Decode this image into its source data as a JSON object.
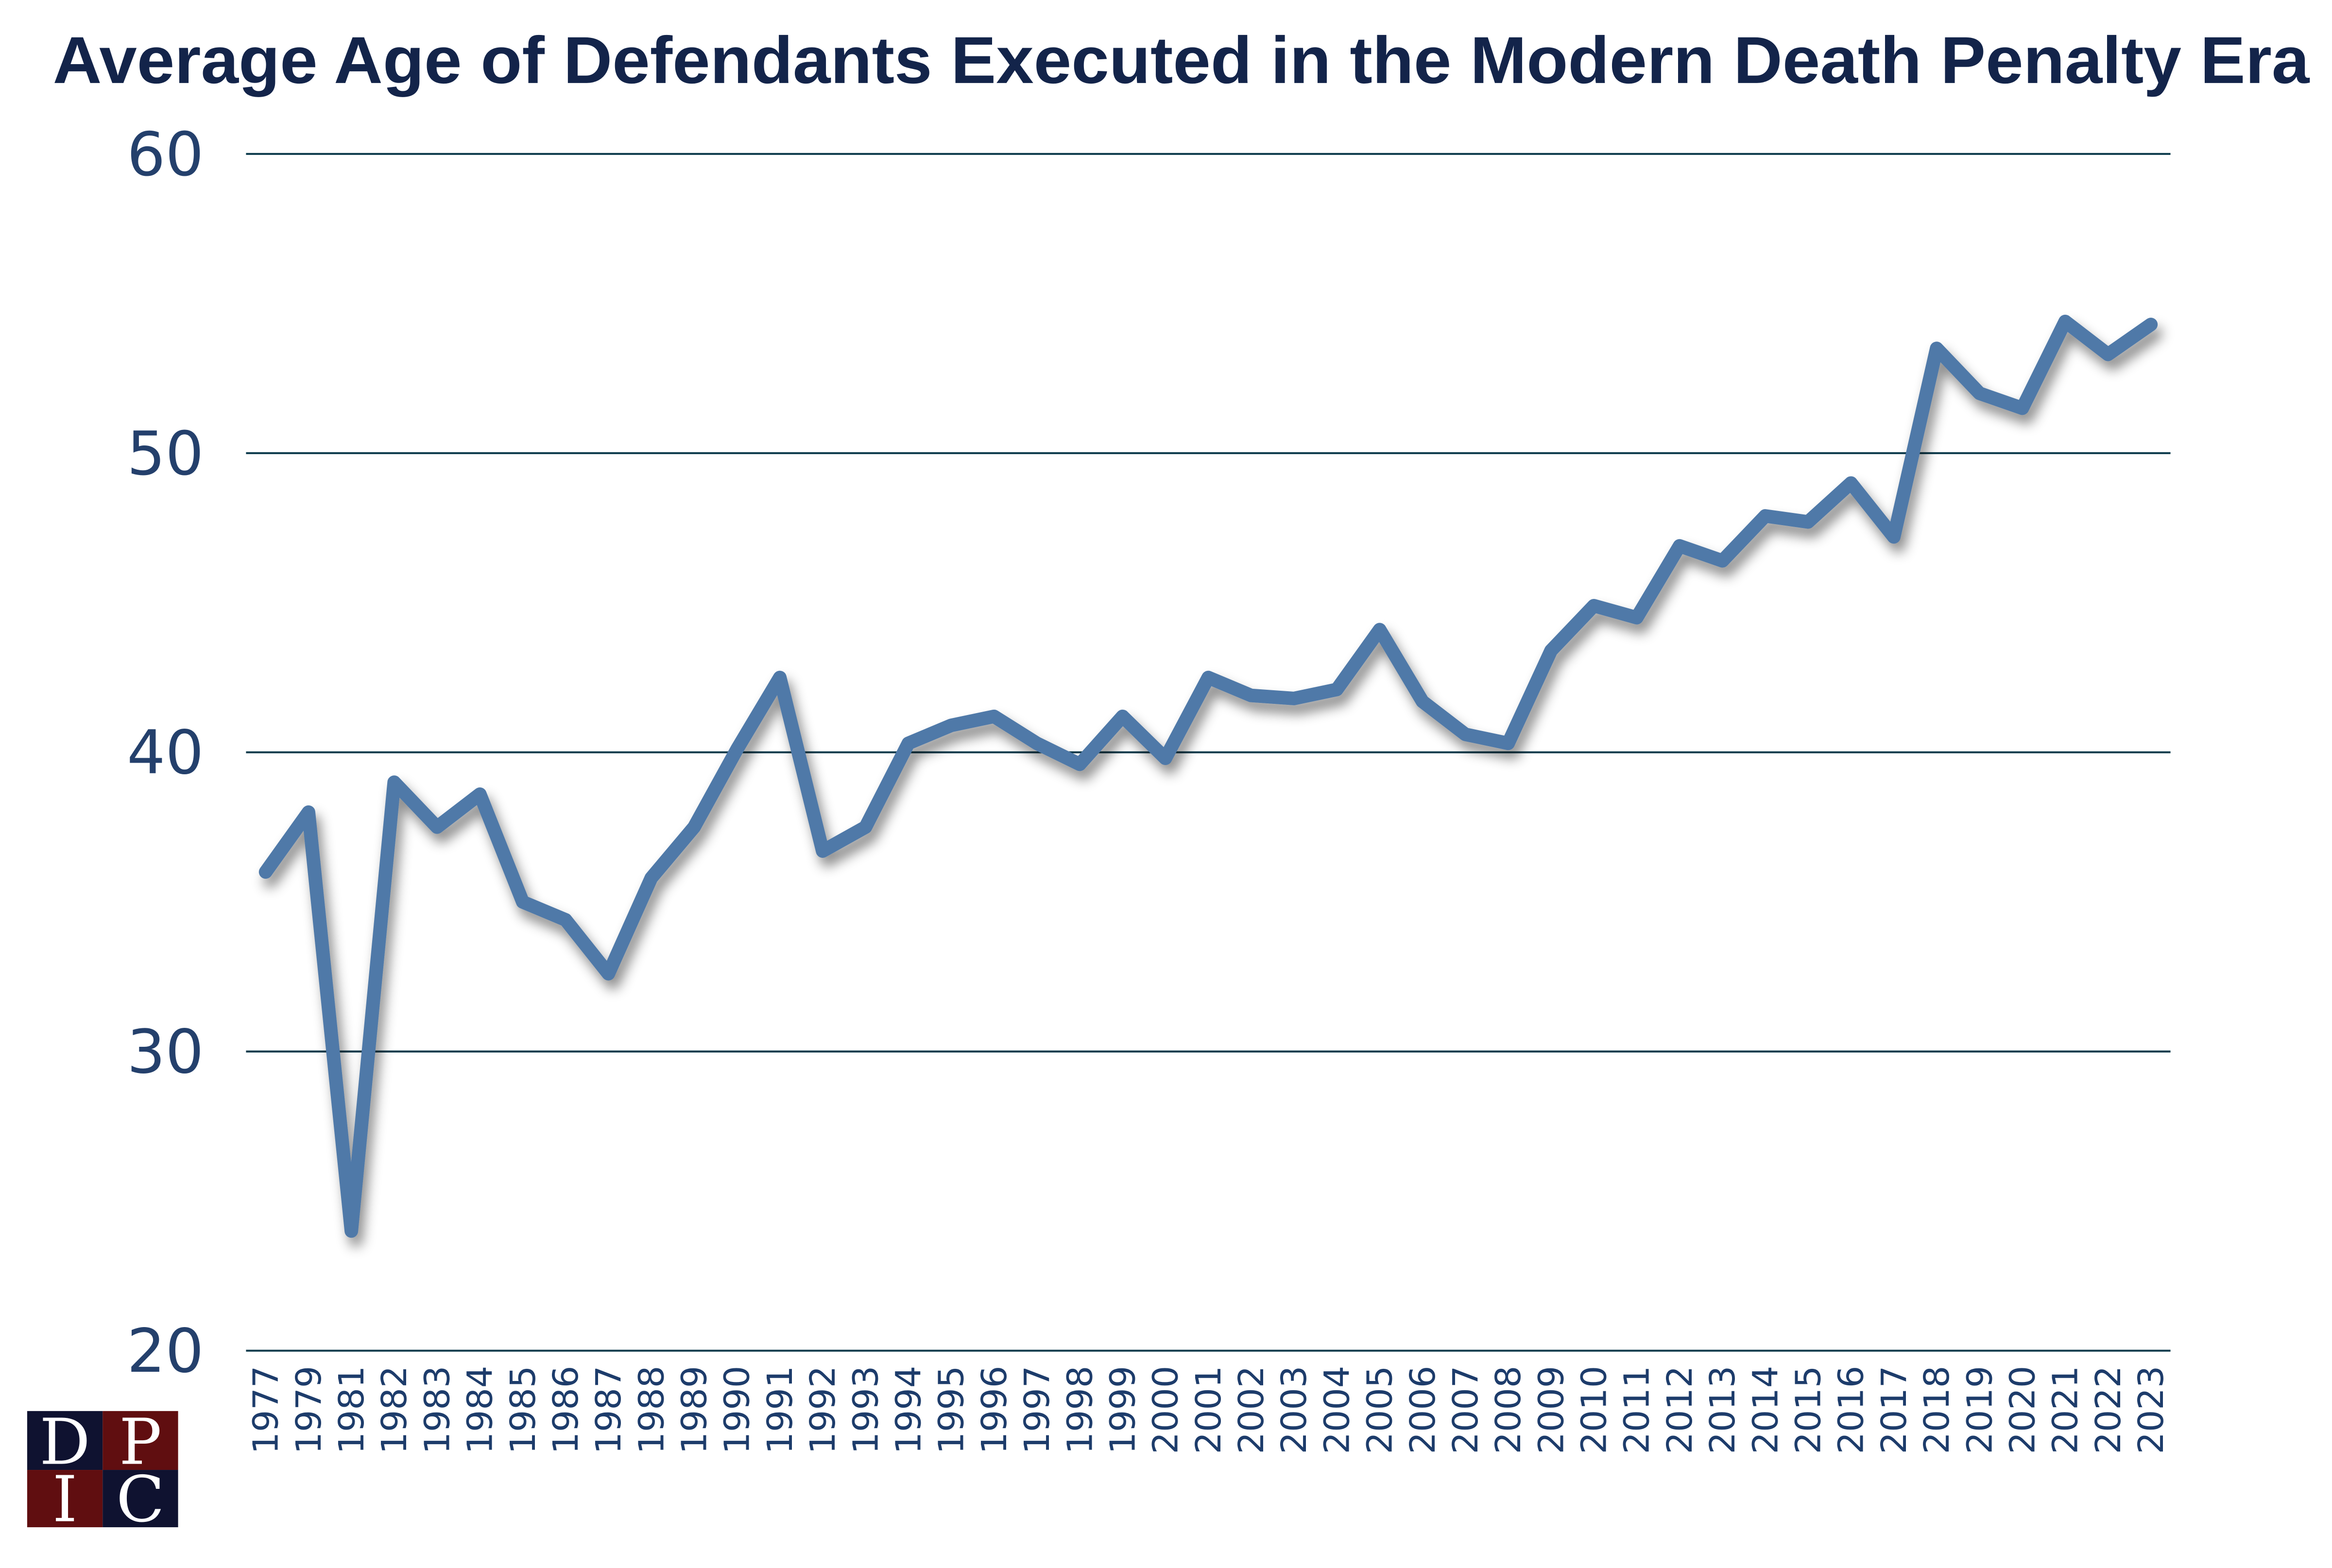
{
  "chart_data": {
    "type": "line",
    "title": "Average Age of Defendants Executed in the Modern Death Penalty Era",
    "xlabel": "",
    "ylabel": "",
    "ylim": [
      20,
      60
    ],
    "yticks": [
      20,
      30,
      40,
      50,
      60
    ],
    "grid": true,
    "categories": [
      "1977",
      "1979",
      "1981",
      "1982",
      "1983",
      "1984",
      "1985",
      "1986",
      "1987",
      "1988",
      "1989",
      "1990",
      "1991",
      "1992",
      "1993",
      "1994",
      "1995",
      "1996",
      "1997",
      "1998",
      "1999",
      "2000",
      "2001",
      "2002",
      "2003",
      "2004",
      "2005",
      "2006",
      "2007",
      "2008",
      "2009",
      "2010",
      "2011",
      "2012",
      "2013",
      "2014",
      "2015",
      "2016",
      "2017",
      "2018",
      "2019",
      "2020",
      "2021",
      "2022",
      "2023"
    ],
    "values": [
      36.0,
      38.0,
      24.0,
      39.0,
      37.5,
      38.6,
      35.0,
      34.4,
      32.6,
      35.8,
      37.5,
      40.1,
      42.5,
      36.7,
      37.5,
      40.3,
      40.9,
      41.2,
      40.3,
      39.6,
      41.2,
      39.8,
      42.5,
      41.9,
      41.8,
      42.1,
      44.1,
      41.7,
      40.6,
      40.3,
      43.4,
      44.9,
      44.5,
      46.9,
      46.4,
      47.9,
      47.7,
      49.0,
      47.2,
      53.5,
      52.0,
      51.5,
      54.4,
      53.3,
      54.3
    ],
    "colors": {
      "line": "#4f79a8",
      "grid": "#0d3b4c",
      "title": "#13244a",
      "ticks": "#24406c"
    }
  },
  "logo": {
    "letters": [
      "D",
      "P",
      "I",
      "C"
    ],
    "colors": {
      "navy": "#0f1230",
      "maroon": "#600e10"
    }
  }
}
